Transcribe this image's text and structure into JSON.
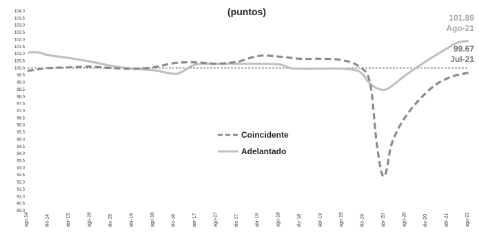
{
  "chart_data": {
    "type": "line",
    "title": "",
    "subtitle": "(puntos)",
    "xlabel": "",
    "ylabel": "",
    "ylim": [
      90.0,
      104.0
    ],
    "ytick_step": 0.5,
    "grid": false,
    "reference_line": 100.0,
    "x_labels": [
      "ago-14",
      "dic-14",
      "abr-15",
      "ago-15",
      "dic-15",
      "abr-16",
      "ago-16",
      "dic-16",
      "abr-17",
      "ago-17",
      "dic-17",
      "abr-18",
      "ago-18",
      "dic-18",
      "abr-19",
      "ago-19",
      "dic-19",
      "abr-20",
      "ago-20",
      "dic-20",
      "abr-21",
      "ago-21"
    ],
    "legend_placement": "lower-middle",
    "series": [
      {
        "name": "Coincidente",
        "color": "#8a8a8a",
        "style": "dashed",
        "points": [
          [
            0,
            99.8
          ],
          [
            1,
            100.0
          ],
          [
            2,
            100.05
          ],
          [
            3,
            100.1
          ],
          [
            4,
            100.0
          ],
          [
            5,
            99.95
          ],
          [
            6,
            100.05
          ],
          [
            7,
            100.35
          ],
          [
            8,
            100.4
          ],
          [
            9,
            100.3
          ],
          [
            10,
            100.45
          ],
          [
            11,
            100.85
          ],
          [
            12,
            100.8
          ],
          [
            13,
            100.65
          ],
          [
            14,
            100.65
          ],
          [
            15,
            100.55
          ],
          [
            15.8,
            100.1
          ],
          [
            16.3,
            99.0
          ],
          [
            16.6,
            95.0
          ],
          [
            16.85,
            92.7
          ],
          [
            17.05,
            92.6
          ],
          [
            17.3,
            94.5
          ],
          [
            17.6,
            95.6
          ],
          [
            18,
            96.6
          ],
          [
            18.6,
            97.7
          ],
          [
            19.4,
            98.8
          ],
          [
            20.2,
            99.4
          ],
          [
            21,
            99.67
          ]
        ],
        "end_label": {
          "value": "99.67",
          "date": "Jul-21"
        }
      },
      {
        "name": "Adelantado",
        "color": "#c0c0c0",
        "style": "solid",
        "points": [
          [
            0,
            101.1
          ],
          [
            0.5,
            101.1
          ],
          [
            1,
            100.9
          ],
          [
            2,
            100.7
          ],
          [
            3,
            100.45
          ],
          [
            4,
            100.15
          ],
          [
            5,
            99.95
          ],
          [
            6,
            99.85
          ],
          [
            6.9,
            99.6
          ],
          [
            7.3,
            99.7
          ],
          [
            8,
            100.25
          ],
          [
            9,
            100.3
          ],
          [
            10,
            100.3
          ],
          [
            11,
            100.3
          ],
          [
            12,
            100.25
          ],
          [
            12.5,
            100.0
          ],
          [
            13,
            99.95
          ],
          [
            14,
            99.95
          ],
          [
            15,
            99.95
          ],
          [
            15.8,
            99.75
          ],
          [
            16.3,
            98.9
          ],
          [
            16.8,
            98.5
          ],
          [
            17.2,
            98.6
          ],
          [
            18,
            99.5
          ],
          [
            19,
            100.5
          ],
          [
            20,
            101.4
          ],
          [
            20.5,
            101.8
          ],
          [
            21,
            101.89
          ]
        ],
        "end_label": {
          "value": "101.89",
          "date": "Ago-21"
        }
      }
    ]
  },
  "legend": {
    "coincidente": "Coincidente",
    "adelantado": "Adelantado"
  },
  "annotations": {
    "adelantado_value": "101.89",
    "adelantado_date": "Ago-21",
    "coincidente_value": "99.67",
    "coincidente_date": "Jul-21"
  }
}
